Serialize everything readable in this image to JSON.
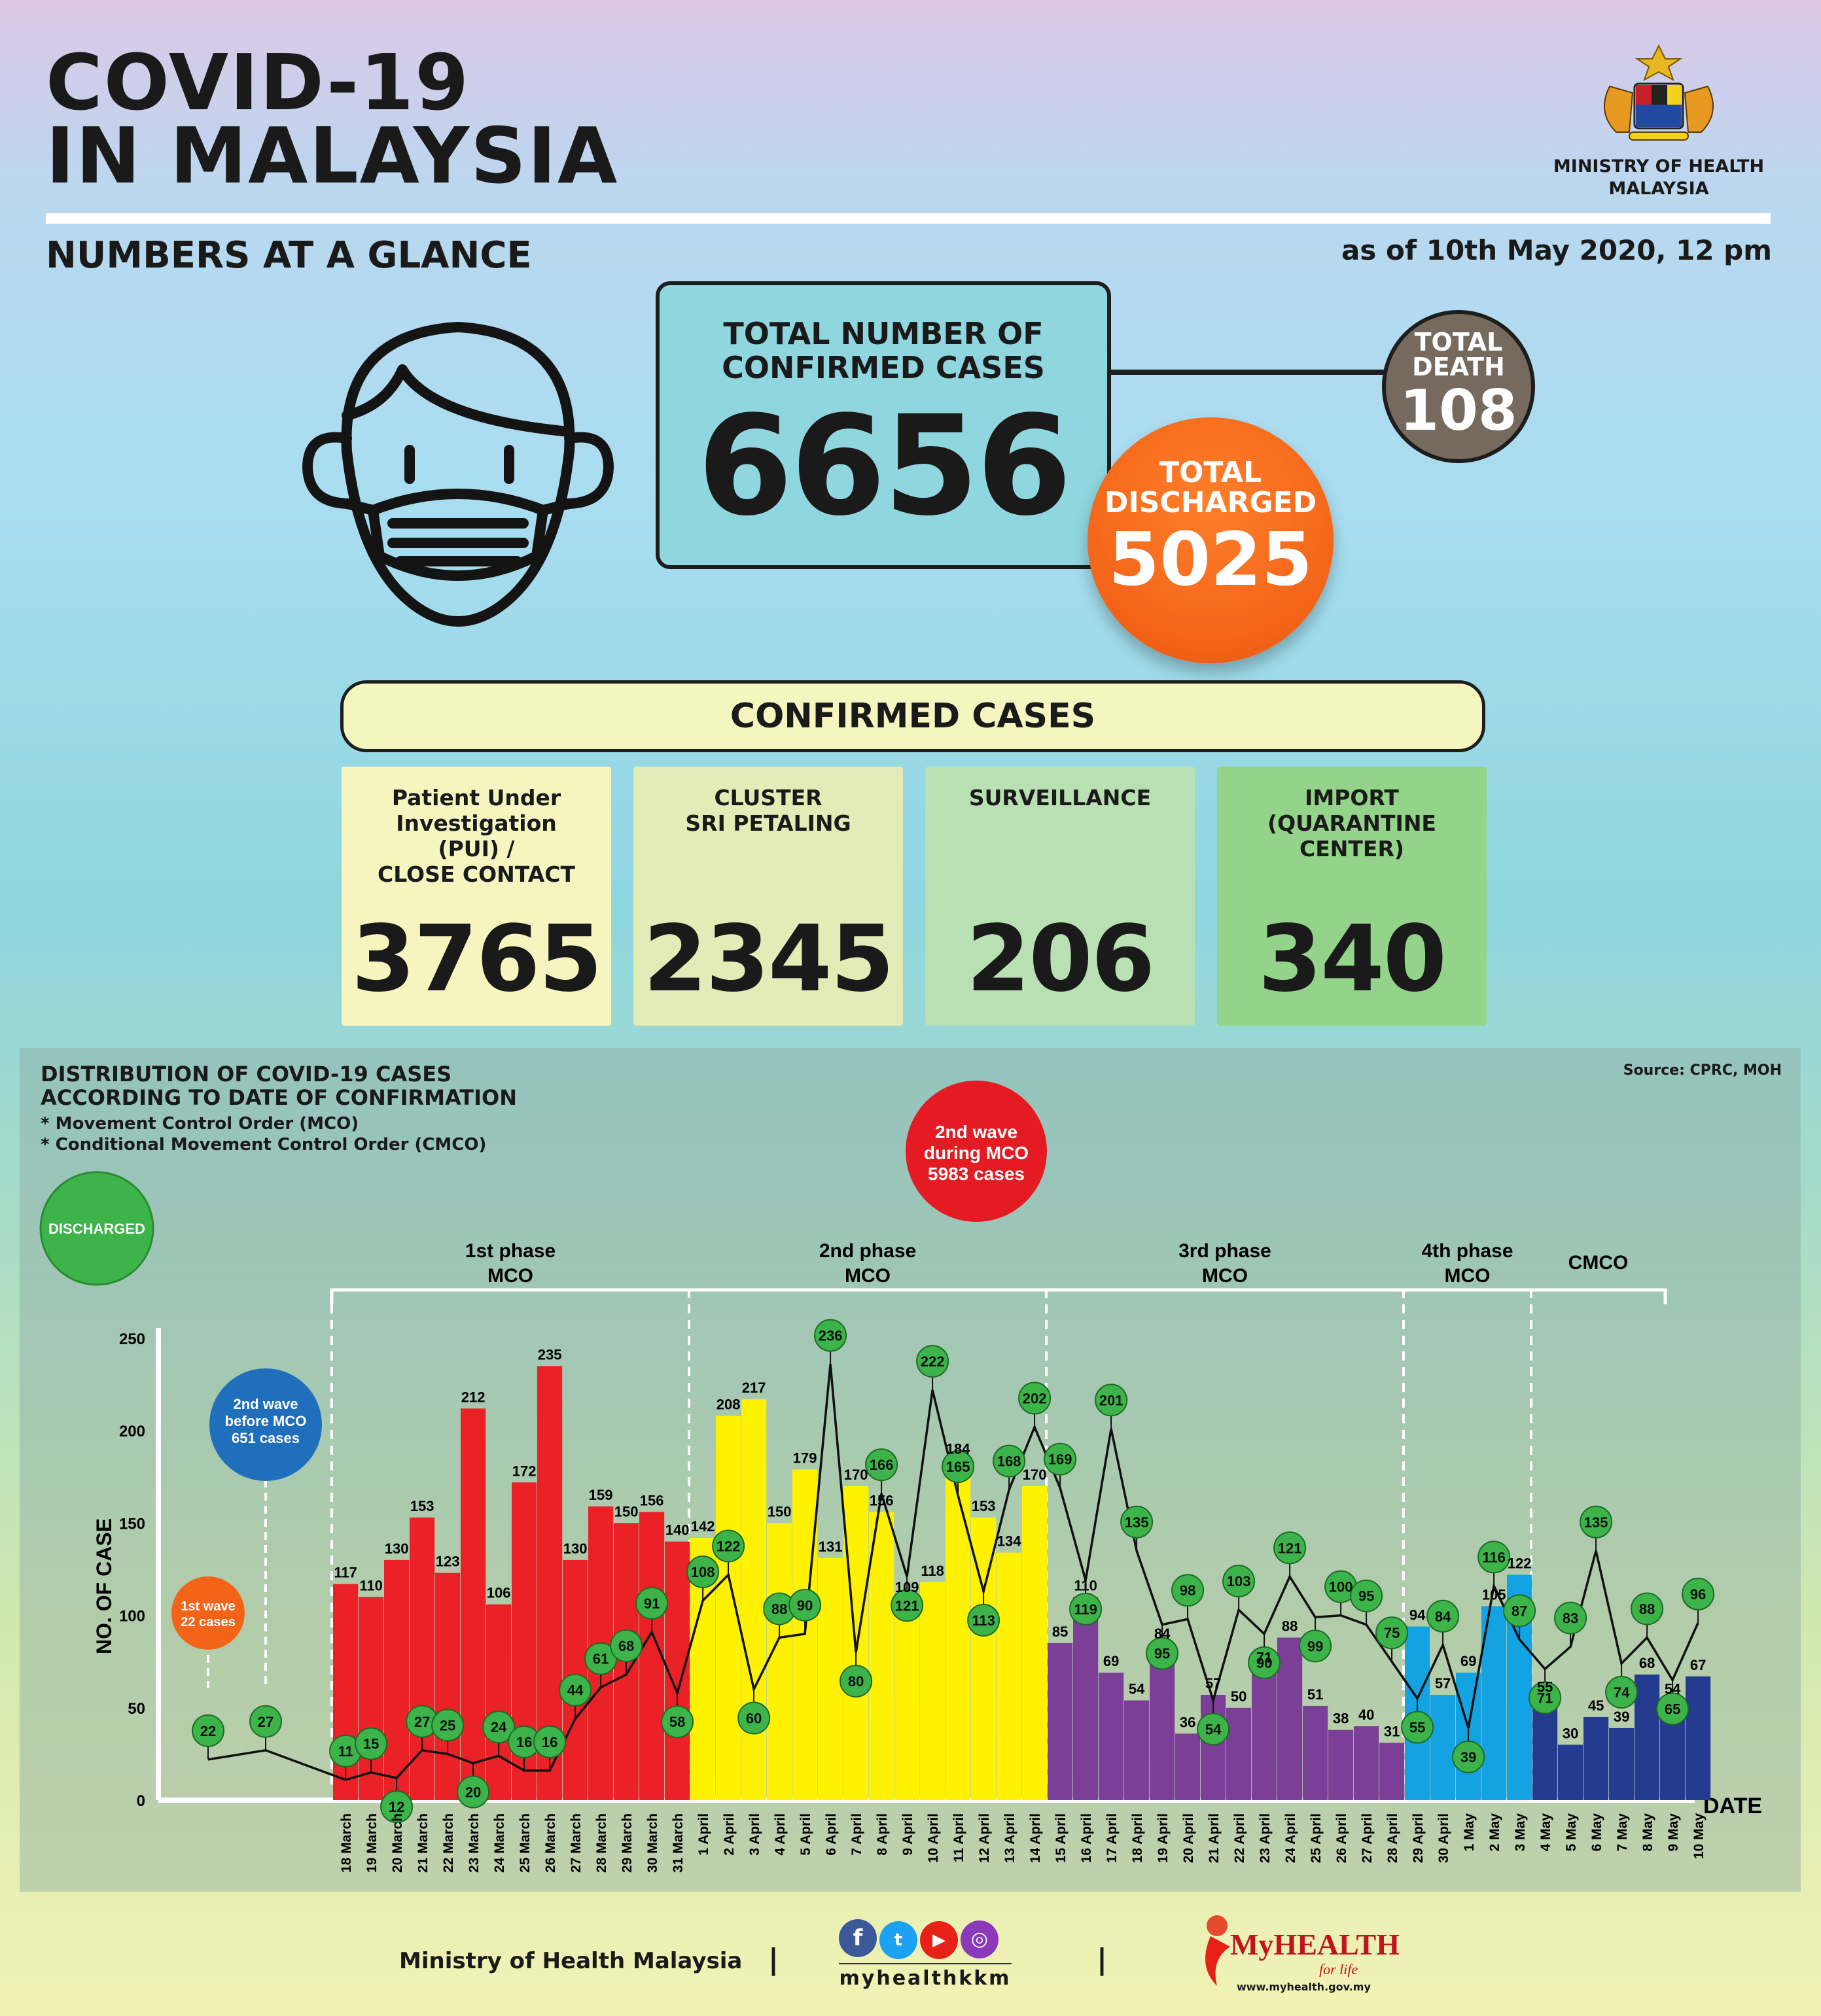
{
  "header": {
    "title_line1": "COVID-19",
    "title_line2": "IN MALAYSIA",
    "ministry_line1": "MINISTRY OF HEALTH",
    "ministry_line2": "MALAYSIA",
    "subtitle": "NUMBERS AT A GLANCE",
    "as_of": "as of 10th May 2020, 12 pm"
  },
  "totals": {
    "confirmed_label_line1": "TOTAL NUMBER OF",
    "confirmed_label_line2": "CONFIRMED CASES",
    "confirmed_value": "6656",
    "death_label_line1": "TOTAL",
    "death_label_line2": "DEATH",
    "death_value": "108",
    "discharged_label_line1": "TOTAL",
    "discharged_label_line2": "DISCHARGED",
    "discharged_value": "5025"
  },
  "confirmed_banner": "CONFIRMED CASES",
  "categories": [
    {
      "label_lines": [
        "Patient Under",
        "Investigation",
        "(PUI) /",
        "CLOSE CONTACT"
      ],
      "value": "3765",
      "color": "#f6f4bf"
    },
    {
      "label_lines": [
        "CLUSTER",
        "SRI PETALING"
      ],
      "value": "2345",
      "color": "#e3ecb6"
    },
    {
      "label_lines": [
        "SURVEILLANCE"
      ],
      "value": "206",
      "color": "#b9e0b3"
    },
    {
      "label_lines": [
        "IMPORT",
        "(QUARANTINE",
        "CENTER)"
      ],
      "value": "340",
      "color": "#94d48a"
    }
  ],
  "chart_section": {
    "title_line1": "DISTRIBUTION OF COVID-19 CASES",
    "title_line2": "ACCORDING TO DATE OF CONFIRMATION",
    "note1": "* Movement Control Order (MCO)",
    "note2": "* Conditional Movement Control Order (CMCO)",
    "source": "Source: CPRC, MOH",
    "discharged_legend": "DISCHARGED",
    "wave_2nd_mco_lines": [
      "2nd wave",
      "during MCO",
      "5983 cases"
    ],
    "wave_2nd_before_lines": [
      "2nd wave",
      "before MCO",
      "651 cases"
    ],
    "wave_1st_lines": [
      "1st wave",
      "22 cases"
    ],
    "phases": [
      {
        "lines": [
          "1st phase",
          "MCO"
        ]
      },
      {
        "lines": [
          "2nd phase",
          "MCO"
        ]
      },
      {
        "lines": [
          "3rd phase",
          "MCO"
        ]
      },
      {
        "lines": [
          "4th phase",
          "MCO"
        ]
      },
      {
        "lines": [
          "CMCO"
        ]
      }
    ]
  },
  "chart_data": {
    "type": "bar",
    "title": "DISTRIBUTION OF COVID-19 CASES ACCORDING TO DATE OF CONFIRMATION",
    "xlabel": "DATE",
    "ylabel": "NO. OF CASE",
    "ylim": [
      0,
      250
    ],
    "yticks": [
      0,
      50,
      100,
      150,
      200,
      250
    ],
    "categories": [
      "18 March",
      "19 March",
      "20 March",
      "21 March",
      "22 March",
      "23 March",
      "24 March",
      "25 March",
      "26 March",
      "27 March",
      "28 March",
      "29 March",
      "30 March",
      "31 March",
      "1 April",
      "2 April",
      "3 April",
      "4 April",
      "5 April",
      "6 April",
      "7 April",
      "8 April",
      "9 April",
      "10 April",
      "11 April",
      "12 April",
      "13 April",
      "14 April",
      "15 April",
      "16 April",
      "17 April",
      "18 April",
      "19 April",
      "20 April",
      "21 April",
      "22 April",
      "23 April",
      "24 April",
      "25 April",
      "26 April",
      "27 April",
      "28 April",
      "29 April",
      "30 April",
      "1 May",
      "2 May",
      "3 May",
      "4 May",
      "5 May",
      "6 May",
      "7 May",
      "8 May",
      "9 May",
      "10 May"
    ],
    "series": [
      {
        "type": "bar",
        "values": [
          117,
          110,
          130,
          153,
          123,
          212,
          106,
          172,
          235,
          130,
          159,
          150,
          156,
          140,
          142,
          208,
          217,
          150,
          179,
          131,
          170,
          156,
          109,
          118,
          184,
          153,
          134,
          170,
          85,
          110,
          69,
          54,
          84,
          36,
          57,
          50,
          71,
          88,
          51,
          38,
          40,
          31,
          94,
          57,
          69,
          105,
          122,
          55,
          30,
          45,
          39,
          68,
          54,
          67
        ]
      },
      {
        "name": "DISCHARGED",
        "type": "line",
        "values": [
          11,
          15,
          12,
          27,
          25,
          20,
          24,
          16,
          16,
          44,
          61,
          68,
          91,
          58,
          108,
          122,
          60,
          88,
          90,
          236,
          80,
          166,
          121,
          222,
          165,
          113,
          168,
          202,
          169,
          119,
          201,
          135,
          95,
          98,
          54,
          103,
          90,
          121,
          99,
          100,
          95,
          75,
          55,
          84,
          39,
          116,
          87,
          71,
          83,
          135,
          74,
          88,
          65,
          96
        ]
      }
    ],
    "pre_mco_discharged": [
      {
        "label": "1st wave",
        "value": 22
      },
      {
        "label": "2nd wave before MCO",
        "value": 27
      }
    ]
  },
  "footer": {
    "ministry": "Ministry of Health Malaysia",
    "handle": "myhealthkkm",
    "myhealth_logo": "MyHEALTH",
    "myhealth_tagline": "for life",
    "myhealth_url": "www.myhealth.gov.my",
    "separator": "|"
  }
}
